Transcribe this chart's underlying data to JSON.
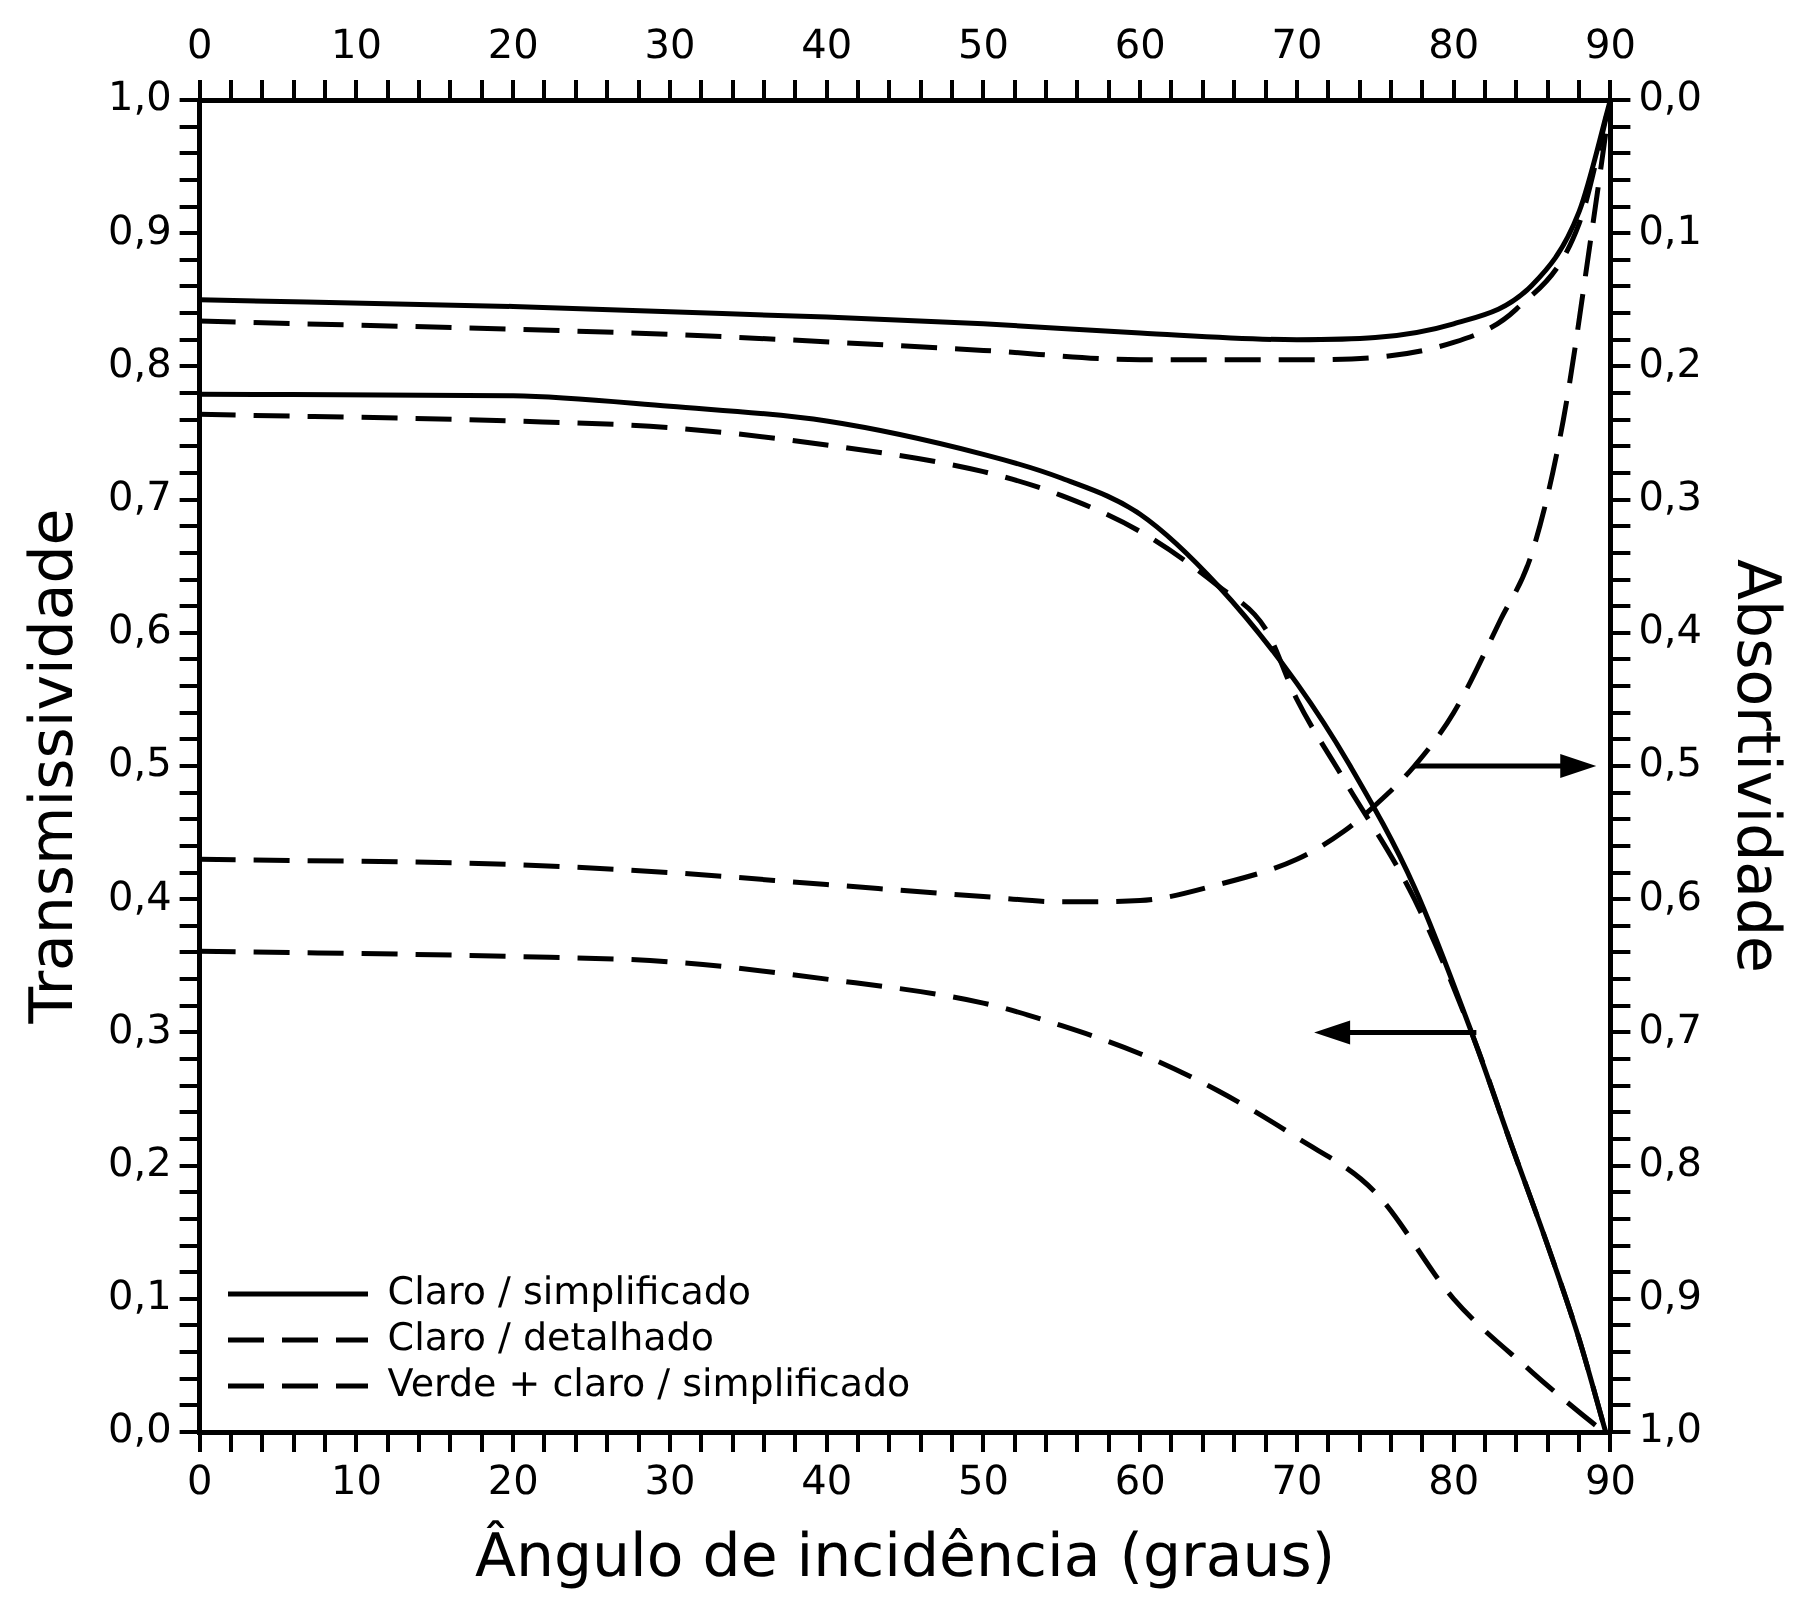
{
  "chart_data": {
    "type": "line",
    "xlabel": "Ângulo de incidência (graus)",
    "ylabel": "Transmissividade",
    "y2label": "Absortividade",
    "legend": "bottom left",
    "grid": false,
    "marker": "none",
    "xlim": [
      0,
      90
    ],
    "x2lim": [
      0,
      90
    ],
    "xticks": [
      0,
      {
        "value": 2,
        "label": null
      },
      {
        "value": 4,
        "label": null
      },
      {
        "value": 6,
        "label": null
      },
      {
        "value": 8,
        "label": null
      },
      10,
      {
        "value": 12,
        "label": null
      },
      {
        "value": 14,
        "label": null
      },
      {
        "value": 16,
        "label": null
      },
      {
        "value": 18,
        "label": null
      },
      20,
      {
        "value": 22,
        "label": null
      },
      {
        "value": 24,
        "label": null
      },
      {
        "value": 26,
        "label": null
      },
      {
        "value": 28,
        "label": null
      },
      30,
      {
        "value": 32,
        "label": null
      },
      {
        "value": 34,
        "label": null
      },
      {
        "value": 36,
        "label": null
      },
      {
        "value": 38,
        "label": null
      },
      40,
      {
        "value": 42,
        "label": null
      },
      {
        "value": 44,
        "label": null
      },
      {
        "value": 46,
        "label": null
      },
      {
        "value": 48,
        "label": null
      },
      50,
      {
        "value": 52,
        "label": null
      },
      {
        "value": 54,
        "label": null
      },
      {
        "value": 56,
        "label": null
      },
      {
        "value": 58,
        "label": null
      },
      60,
      {
        "value": 62,
        "label": null
      },
      {
        "value": 64,
        "label": null
      },
      {
        "value": 66,
        "label": null
      },
      {
        "value": 68,
        "label": null
      },
      70,
      {
        "value": 72,
        "label": null
      },
      {
        "value": 74,
        "label": null
      },
      {
        "value": 76,
        "label": null
      },
      {
        "value": 78,
        "label": null
      },
      80,
      {
        "value": 82,
        "label": null
      },
      {
        "value": 84,
        "label": null
      },
      {
        "value": 86,
        "label": null
      },
      {
        "value": 88,
        "label": null
      },
      90
    ],
    "x2ticks": [
      0,
      {
        "value": 2,
        "label": null
      },
      {
        "value": 4,
        "label": null
      },
      {
        "value": 6,
        "label": null
      },
      {
        "value": 8,
        "label": null
      },
      10,
      {
        "value": 12,
        "label": null
      },
      {
        "value": 14,
        "label": null
      },
      {
        "value": 16,
        "label": null
      },
      {
        "value": 18,
        "label": null
      },
      20,
      {
        "value": 22,
        "label": null
      },
      {
        "value": 24,
        "label": null
      },
      {
        "value": 26,
        "label": null
      },
      {
        "value": 28,
        "label": null
      },
      30,
      {
        "value": 32,
        "label": null
      },
      {
        "value": 34,
        "label": null
      },
      {
        "value": 36,
        "label": null
      },
      {
        "value": 38,
        "label": null
      },
      40,
      {
        "value": 42,
        "label": null
      },
      {
        "value": 44,
        "label": null
      },
      {
        "value": 46,
        "label": null
      },
      {
        "value": 48,
        "label": null
      },
      50,
      {
        "value": 52,
        "label": null
      },
      {
        "value": 54,
        "label": null
      },
      {
        "value": 56,
        "label": null
      },
      {
        "value": 58,
        "label": null
      },
      60,
      {
        "value": 62,
        "label": null
      },
      {
        "value": 64,
        "label": null
      },
      {
        "value": 66,
        "label": null
      },
      {
        "value": 68,
        "label": null
      },
      70,
      {
        "value": 72,
        "label": null
      },
      {
        "value": 74,
        "label": null
      },
      {
        "value": 76,
        "label": null
      },
      {
        "value": 78,
        "label": null
      },
      80,
      {
        "value": 82,
        "label": null
      },
      {
        "value": 84,
        "label": null
      },
      {
        "value": 86,
        "label": null
      },
      {
        "value": 88,
        "label": null
      },
      90
    ],
    "ylim": [
      0,
      1
    ],
    "yticks": [
      {
        "value": 0,
        "label": "0,0"
      },
      {
        "value": 0.02,
        "label": null
      },
      {
        "value": 0.04,
        "label": null
      },
      {
        "value": 0.06,
        "label": null
      },
      {
        "value": 0.08,
        "label": null
      },
      {
        "value": 0.1,
        "label": "0,1"
      },
      {
        "value": 0.12,
        "label": null
      },
      {
        "value": 0.14,
        "label": null
      },
      {
        "value": 0.16,
        "label": null
      },
      {
        "value": 0.18,
        "label": null
      },
      {
        "value": 0.2,
        "label": "0,2"
      },
      {
        "value": 0.22,
        "label": null
      },
      {
        "value": 0.24,
        "label": null
      },
      {
        "value": 0.26,
        "label": null
      },
      {
        "value": 0.28,
        "label": null
      },
      {
        "value": 0.3,
        "label": "0,3"
      },
      {
        "value": 0.32,
        "label": null
      },
      {
        "value": 0.34,
        "label": null
      },
      {
        "value": 0.36,
        "label": null
      },
      {
        "value": 0.38,
        "label": null
      },
      {
        "value": 0.4,
        "label": "0,4"
      },
      {
        "value": 0.42,
        "label": null
      },
      {
        "value": 0.44,
        "label": null
      },
      {
        "value": 0.46,
        "label": null
      },
      {
        "value": 0.48,
        "label": null
      },
      {
        "value": 0.5,
        "label": "0,5"
      },
      {
        "value": 0.52,
        "label": null
      },
      {
        "value": 0.54,
        "label": null
      },
      {
        "value": 0.56,
        "label": null
      },
      {
        "value": 0.58,
        "label": null
      },
      {
        "value": 0.6,
        "label": "0,6"
      },
      {
        "value": 0.62,
        "label": null
      },
      {
        "value": 0.64,
        "label": null
      },
      {
        "value": 0.66,
        "label": null
      },
      {
        "value": 0.68,
        "label": null
      },
      {
        "value": 0.7,
        "label": "0,7"
      },
      {
        "value": 0.72,
        "label": null
      },
      {
        "value": 0.74,
        "label": null
      },
      {
        "value": 0.76,
        "label": null
      },
      {
        "value": 0.78,
        "label": null
      },
      {
        "value": 0.8,
        "label": "0,8"
      },
      {
        "value": 0.82,
        "label": null
      },
      {
        "value": 0.84,
        "label": null
      },
      {
        "value": 0.86,
        "label": null
      },
      {
        "value": 0.88,
        "label": null
      },
      {
        "value": 0.9,
        "label": "0,9"
      },
      {
        "value": 0.92,
        "label": null
      },
      {
        "value": 0.94,
        "label": null
      },
      {
        "value": 0.96,
        "label": null
      },
      {
        "value": 0.98,
        "label": null
      },
      {
        "value": 1,
        "label": "1,0"
      }
    ],
    "y2lim": [
      1,
      0
    ],
    "y2ticks": [
      {
        "value": 0,
        "label": "0,0"
      },
      {
        "value": 0.02,
        "label": null
      },
      {
        "value": 0.04,
        "label": null
      },
      {
        "value": 0.06,
        "label": null
      },
      {
        "value": 0.08,
        "label": null
      },
      {
        "value": 0.1,
        "label": "0,1"
      },
      {
        "value": 0.12,
        "label": null
      },
      {
        "value": 0.14,
        "label": null
      },
      {
        "value": 0.16,
        "label": null
      },
      {
        "value": 0.18,
        "label": null
      },
      {
        "value": 0.2,
        "label": "0,2"
      },
      {
        "value": 0.22,
        "label": null
      },
      {
        "value": 0.24,
        "label": null
      },
      {
        "value": 0.26,
        "label": null
      },
      {
        "value": 0.28,
        "label": null
      },
      {
        "value": 0.3,
        "label": "0,3"
      },
      {
        "value": 0.32,
        "label": null
      },
      {
        "value": 0.34,
        "label": null
      },
      {
        "value": 0.36,
        "label": null
      },
      {
        "value": 0.38,
        "label": null
      },
      {
        "value": 0.4,
        "label": "0,4"
      },
      {
        "value": 0.42,
        "label": null
      },
      {
        "value": 0.44,
        "label": null
      },
      {
        "value": 0.46,
        "label": null
      },
      {
        "value": 0.48,
        "label": null
      },
      {
        "value": 0.5,
        "label": "0,5"
      },
      {
        "value": 0.52,
        "label": null
      },
      {
        "value": 0.54,
        "label": null
      },
      {
        "value": 0.56,
        "label": null
      },
      {
        "value": 0.58,
        "label": null
      },
      {
        "value": 0.6,
        "label": "0,6"
      },
      {
        "value": 0.62,
        "label": null
      },
      {
        "value": 0.64,
        "label": null
      },
      {
        "value": 0.66,
        "label": null
      },
      {
        "value": 0.68,
        "label": null
      },
      {
        "value": 0.7,
        "label": "0,7"
      },
      {
        "value": 0.72,
        "label": null
      },
      {
        "value": 0.74,
        "label": null
      },
      {
        "value": 0.76,
        "label": null
      },
      {
        "value": 0.78,
        "label": null
      },
      {
        "value": 0.8,
        "label": "0,8"
      },
      {
        "value": 0.82,
        "label": null
      },
      {
        "value": 0.84,
        "label": null
      },
      {
        "value": 0.86,
        "label": null
      },
      {
        "value": 0.88,
        "label": null
      },
      {
        "value": 0.9,
        "label": "0,9"
      },
      {
        "value": 0.92,
        "label": null
      },
      {
        "value": 0.94,
        "label": null
      },
      {
        "value": 0.96,
        "label": null
      },
      {
        "value": 0.98,
        "label": null
      },
      {
        "value": 1,
        "label": "1,0"
      }
    ],
    "series": [
      {
        "name": "Claro / simplificado",
        "color": "#000000",
        "line_style": "solid",
        "x": [
          0,
          20,
          30,
          40,
          50,
          55,
          60,
          65,
          70,
          73.5,
          77.5,
          81.3,
          83.7,
          86,
          88,
          89.7
        ],
        "values": [
          0.779,
          0.778,
          0.77,
          0.759,
          0.734,
          0.716,
          0.689,
          0.635,
          0.562,
          0.498,
          0.409,
          0.295,
          0.215,
          0.14,
          0.07,
          0
        ]
      },
      {
        "name": "Claro / detalhado",
        "color": "#000000",
        "line_style": "dashed",
        "x": [
          0,
          20,
          30,
          40,
          50,
          55,
          60,
          65,
          68,
          70,
          73,
          77.5,
          81.3,
          83.7,
          86,
          88,
          89.7
        ],
        "values": [
          0.764,
          0.759,
          0.754,
          0.741,
          0.721,
          0.703,
          0.676,
          0.635,
          0.603,
          0.55,
          0.49,
          0.4,
          0.295,
          0.215,
          0.14,
          0.07,
          0
        ]
      },
      {
        "name": "Verde + claro / simplificado",
        "color": "#000000",
        "line_style": "dashed",
        "x": [
          0,
          20,
          30,
          40,
          50,
          55,
          60,
          65,
          70,
          75,
          80,
          85,
          88,
          89.6
        ],
        "values": [
          0.361,
          0.357,
          0.353,
          0.34,
          0.322,
          0.305,
          0.284,
          0.256,
          0.221,
          0.18,
          0.1,
          0.045,
          0.015,
          0
        ]
      },
      {
        "color": "#000000",
        "line_style": "solid",
        "axis": "y2",
        "x": [
          0,
          20,
          30,
          40,
          50,
          60,
          70,
          80,
          85,
          88,
          90
        ],
        "values": [
          0.15,
          0.155,
          0.159,
          0.163,
          0.168,
          0.175,
          0.18,
          0.168,
          0.139,
          0.084,
          0
        ]
      },
      {
        "color": "#000000",
        "line_style": "dashed",
        "axis": "y2",
        "x": [
          0,
          30,
          50,
          60,
          70,
          80,
          84,
          88,
          90
        ],
        "values": [
          0.166,
          0.176,
          0.188,
          0.195,
          0.195,
          0.182,
          0.157,
          0.093,
          0
        ]
      },
      {
        "color": "#000000",
        "line_style": "dashed",
        "axis": "y2",
        "x": [
          0,
          20,
          30,
          40,
          50,
          55,
          60,
          65,
          70,
          73,
          75.5,
          77.5,
          80,
          83,
          85,
          87,
          88.8,
          90
        ],
        "values": [
          0.57,
          0.574,
          0.58,
          0.589,
          0.598,
          0.602,
          0.601,
          0.589,
          0.57,
          0.549,
          0.524,
          0.5,
          0.46,
          0.39,
          0.34,
          0.24,
          0.1,
          0
        ]
      }
    ]
  }
}
